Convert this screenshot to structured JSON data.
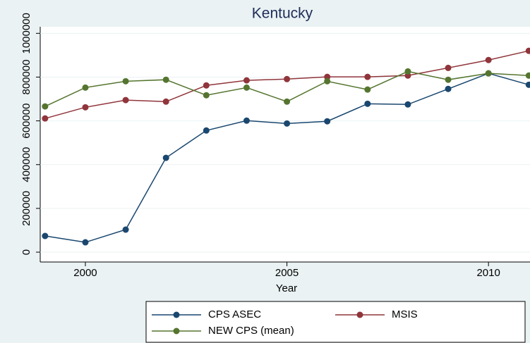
{
  "chart_data": {
    "type": "line",
    "title": "Kentucky",
    "x_label": "Year",
    "x": [
      1999,
      2000,
      2001,
      2002,
      2003,
      2004,
      2005,
      2006,
      2007,
      2008,
      2009,
      2010,
      2011
    ],
    "xlim": [
      1998.88,
      2011.03
    ],
    "xticks": [
      2000,
      2005,
      2010
    ],
    "ylim": [
      -45000,
      1030000
    ],
    "yticks": [
      0,
      200000,
      400000,
      600000,
      800000,
      1000000
    ],
    "grid": true,
    "legend": "bottom",
    "series": [
      {
        "name": "CPS ASEC",
        "color": "#1a476f",
        "values": [
          74000,
          45000,
          103000,
          431000,
          556000,
          601000,
          588000,
          598000,
          678000,
          675000,
          746000,
          817000,
          765000
        ]
      },
      {
        "name": "MSIS",
        "color": "#90353b",
        "values": [
          611000,
          662000,
          695000,
          688000,
          762000,
          785000,
          791000,
          801000,
          801000,
          807000,
          842000,
          878000,
          920000
        ]
      },
      {
        "name": "NEW CPS (mean)",
        "color": "#55752f",
        "values": [
          666000,
          752000,
          781000,
          788000,
          717000,
          752000,
          688000,
          781000,
          743000,
          826000,
          788000,
          817000,
          807000
        ]
      }
    ]
  }
}
